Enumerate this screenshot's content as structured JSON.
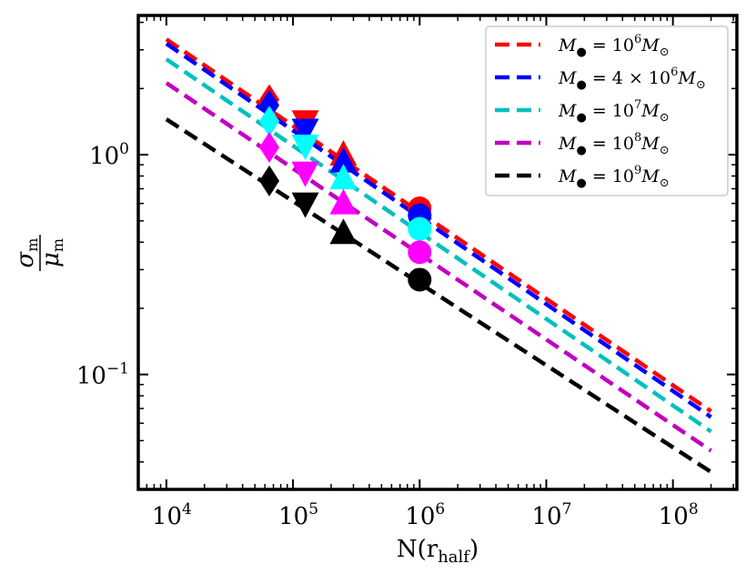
{
  "chart_data": {
    "type": "line",
    "xscale": "log",
    "yscale": "log",
    "xlim": [
      6000,
      320000000
    ],
    "ylim": [
      0.03,
      4.3
    ],
    "xlabel": "N(r_half)",
    "xlabel_main": "N(r",
    "xlabel_sub": "half",
    "xlabel_close": ")",
    "ylabel": "σ_m / μ_m",
    "ylabel_num": "σ",
    "ylabel_den": "μ",
    "ylabel_sub": "m",
    "x_ticks": [
      {
        "value": 10000,
        "base": "10",
        "exp": "4"
      },
      {
        "value": 100000,
        "base": "10",
        "exp": "5"
      },
      {
        "value": 1000000,
        "base": "10",
        "exp": "6"
      },
      {
        "value": 10000000,
        "base": "10",
        "exp": "7"
      },
      {
        "value": 100000000,
        "base": "10",
        "exp": "8"
      }
    ],
    "y_ticks": [
      {
        "value": 0.1,
        "base": "10",
        "exp": "−1"
      },
      {
        "value": 1,
        "base": "10",
        "exp": "0"
      }
    ],
    "legend_position": "upper right",
    "series": [
      {
        "name": "M• = 10^6 M⊙",
        "legend": {
          "prefix": "M",
          "eq": " = 10",
          "exp": "6",
          "mid": "",
          "suffix": "M"
        },
        "color": "#ff0000",
        "line": {
          "x": [
            10000,
            200000000
          ],
          "y": [
            3.35,
            0.068
          ]
        },
        "points": [
          {
            "x": 65000,
            "y": 1.78,
            "marker": "diamond"
          },
          {
            "x": 125000,
            "y": 1.42,
            "marker": "triangle-down"
          },
          {
            "x": 250000,
            "y": 1.0,
            "marker": "triangle-up"
          },
          {
            "x": 1000000,
            "y": 0.57,
            "marker": "circle"
          }
        ]
      },
      {
        "name": "M• = 4 × 10^6 M⊙",
        "legend": {
          "prefix": "M",
          "eq": " = 4 × 10",
          "exp": "6",
          "mid": "",
          "suffix": "M"
        },
        "color": "#0000ff",
        "line": {
          "x": [
            10000,
            200000000
          ],
          "y": [
            3.2,
            0.064
          ]
        },
        "points": [
          {
            "x": 65000,
            "y": 1.68,
            "marker": "diamond"
          },
          {
            "x": 125000,
            "y": 1.3,
            "marker": "triangle-down"
          },
          {
            "x": 250000,
            "y": 0.93,
            "marker": "triangle-up"
          },
          {
            "x": 1000000,
            "y": 0.53,
            "marker": "circle"
          }
        ]
      },
      {
        "name": "M• = 10^7 M⊙",
        "legend": {
          "prefix": "M",
          "eq": " = 10",
          "exp": "7",
          "mid": "",
          "suffix": "M"
        },
        "color": "#00c0c0",
        "line": {
          "x": [
            10000,
            200000000
          ],
          "y": [
            2.72,
            0.055
          ]
        },
        "points": [
          {
            "x": 65000,
            "y": 1.42,
            "marker": "diamond"
          },
          {
            "x": 125000,
            "y": 1.1,
            "marker": "triangle-down"
          },
          {
            "x": 250000,
            "y": 0.78,
            "marker": "triangle-up"
          },
          {
            "x": 1000000,
            "y": 0.46,
            "marker": "circle"
          }
        ]
      },
      {
        "name": "M• = 10^8 M⊙",
        "legend": {
          "prefix": "M",
          "eq": " = 10",
          "exp": "8",
          "mid": "",
          "suffix": "M"
        },
        "color": "#c000c0",
        "line": {
          "x": [
            10000,
            200000000
          ],
          "y": [
            2.12,
            0.045
          ]
        },
        "points": [
          {
            "x": 65000,
            "y": 1.08,
            "marker": "diamond"
          },
          {
            "x": 125000,
            "y": 0.83,
            "marker": "triangle-down"
          },
          {
            "x": 250000,
            "y": 0.6,
            "marker": "triangle-up"
          },
          {
            "x": 1000000,
            "y": 0.36,
            "marker": "circle"
          }
        ]
      },
      {
        "name": "M• = 10^9 M⊙",
        "legend": {
          "prefix": "M",
          "eq": " = 10",
          "exp": "9",
          "mid": "",
          "suffix": "M"
        },
        "color": "#000000",
        "line": {
          "x": [
            10000,
            200000000
          ],
          "y": [
            1.45,
            0.036
          ]
        },
        "points": [
          {
            "x": 65000,
            "y": 0.76,
            "marker": "diamond"
          },
          {
            "x": 125000,
            "y": 0.6,
            "marker": "triangle-down"
          },
          {
            "x": 250000,
            "y": 0.44,
            "marker": "triangle-up"
          },
          {
            "x": 1000000,
            "y": 0.27,
            "marker": "circle"
          }
        ]
      }
    ],
    "point_colors": {
      "#ff0000": "#ff0000",
      "#0000ff": "#0000ff",
      "#00c0c0": "#00ffff",
      "#c000c0": "#ff00ff",
      "#000000": "#000000"
    }
  }
}
